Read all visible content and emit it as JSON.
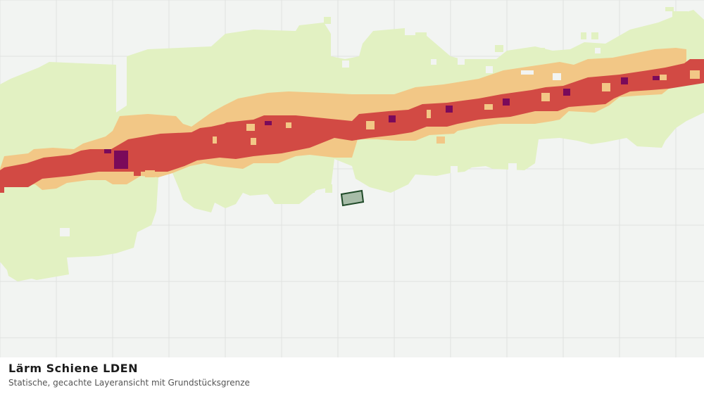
{
  "layer": {
    "title": "Lärm Schiene LDEN",
    "subtitle": "Statische, gecachte Layeransicht mit Grundstücksgrenze"
  },
  "colors": {
    "background": "#f2f4f2",
    "grid": "#e0e2e0",
    "band_low": "#e2f1c2",
    "band_mid": "#f2c786",
    "band_high": "#d24a44",
    "band_peak": "#7a0a5a",
    "parcel_fill": "#a7bca8",
    "parcel_stroke": "#1f4a28"
  }
}
